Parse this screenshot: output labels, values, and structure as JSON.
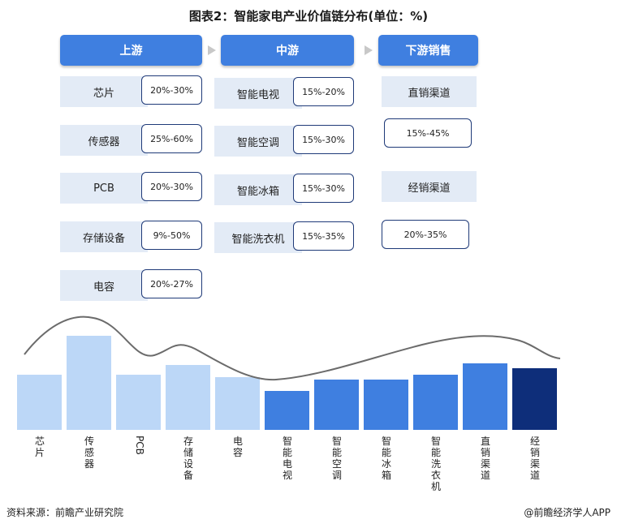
{
  "title": "图表2：智能家电产业价值链分布(单位：%)",
  "columns": [
    {
      "header": "上游",
      "items": [
        {
          "name": "芯片",
          "range": "20%-30%"
        },
        {
          "name": "传感器",
          "range": "25%-60%"
        },
        {
          "name": "PCB",
          "range": "20%-30%"
        },
        {
          "name": "存储设备",
          "range": "9%-50%"
        },
        {
          "name": "电容",
          "range": "20%-27%"
        }
      ]
    },
    {
      "header": "中游",
      "items": [
        {
          "name": "智能电视",
          "range": "15%-20%"
        },
        {
          "name": "智能空调",
          "range": "15%-30%"
        },
        {
          "name": "智能冰箱",
          "range": "15%-30%"
        },
        {
          "name": "智能洗衣机",
          "range": "15%-35%"
        }
      ]
    },
    {
      "header": "下游销售",
      "items": [
        {
          "name": "直销渠道",
          "range": "15%-45%"
        },
        {
          "name": "经销渠道",
          "range": "20%-35%"
        }
      ]
    }
  ],
  "bar_labels": [
    "芯片",
    "传感器",
    "PCB",
    "存储设备",
    "电容",
    "智能电视",
    "智能空调",
    "智能冰箱",
    "智能洗衣机",
    "直销渠道",
    "经销渠道"
  ],
  "footer": {
    "source": "资料来源：前瞻产业研究院",
    "brand": "@前瞻经济学人APP"
  },
  "colors": {
    "header": "#3f7fe0",
    "upstream_bar": "#bcd7f7",
    "midstream_bar": "#3f7fe0",
    "direct_bar": "#3f7fe0",
    "dealer_bar": "#0e2e7a",
    "curve": "#6b6b6b"
  }
}
